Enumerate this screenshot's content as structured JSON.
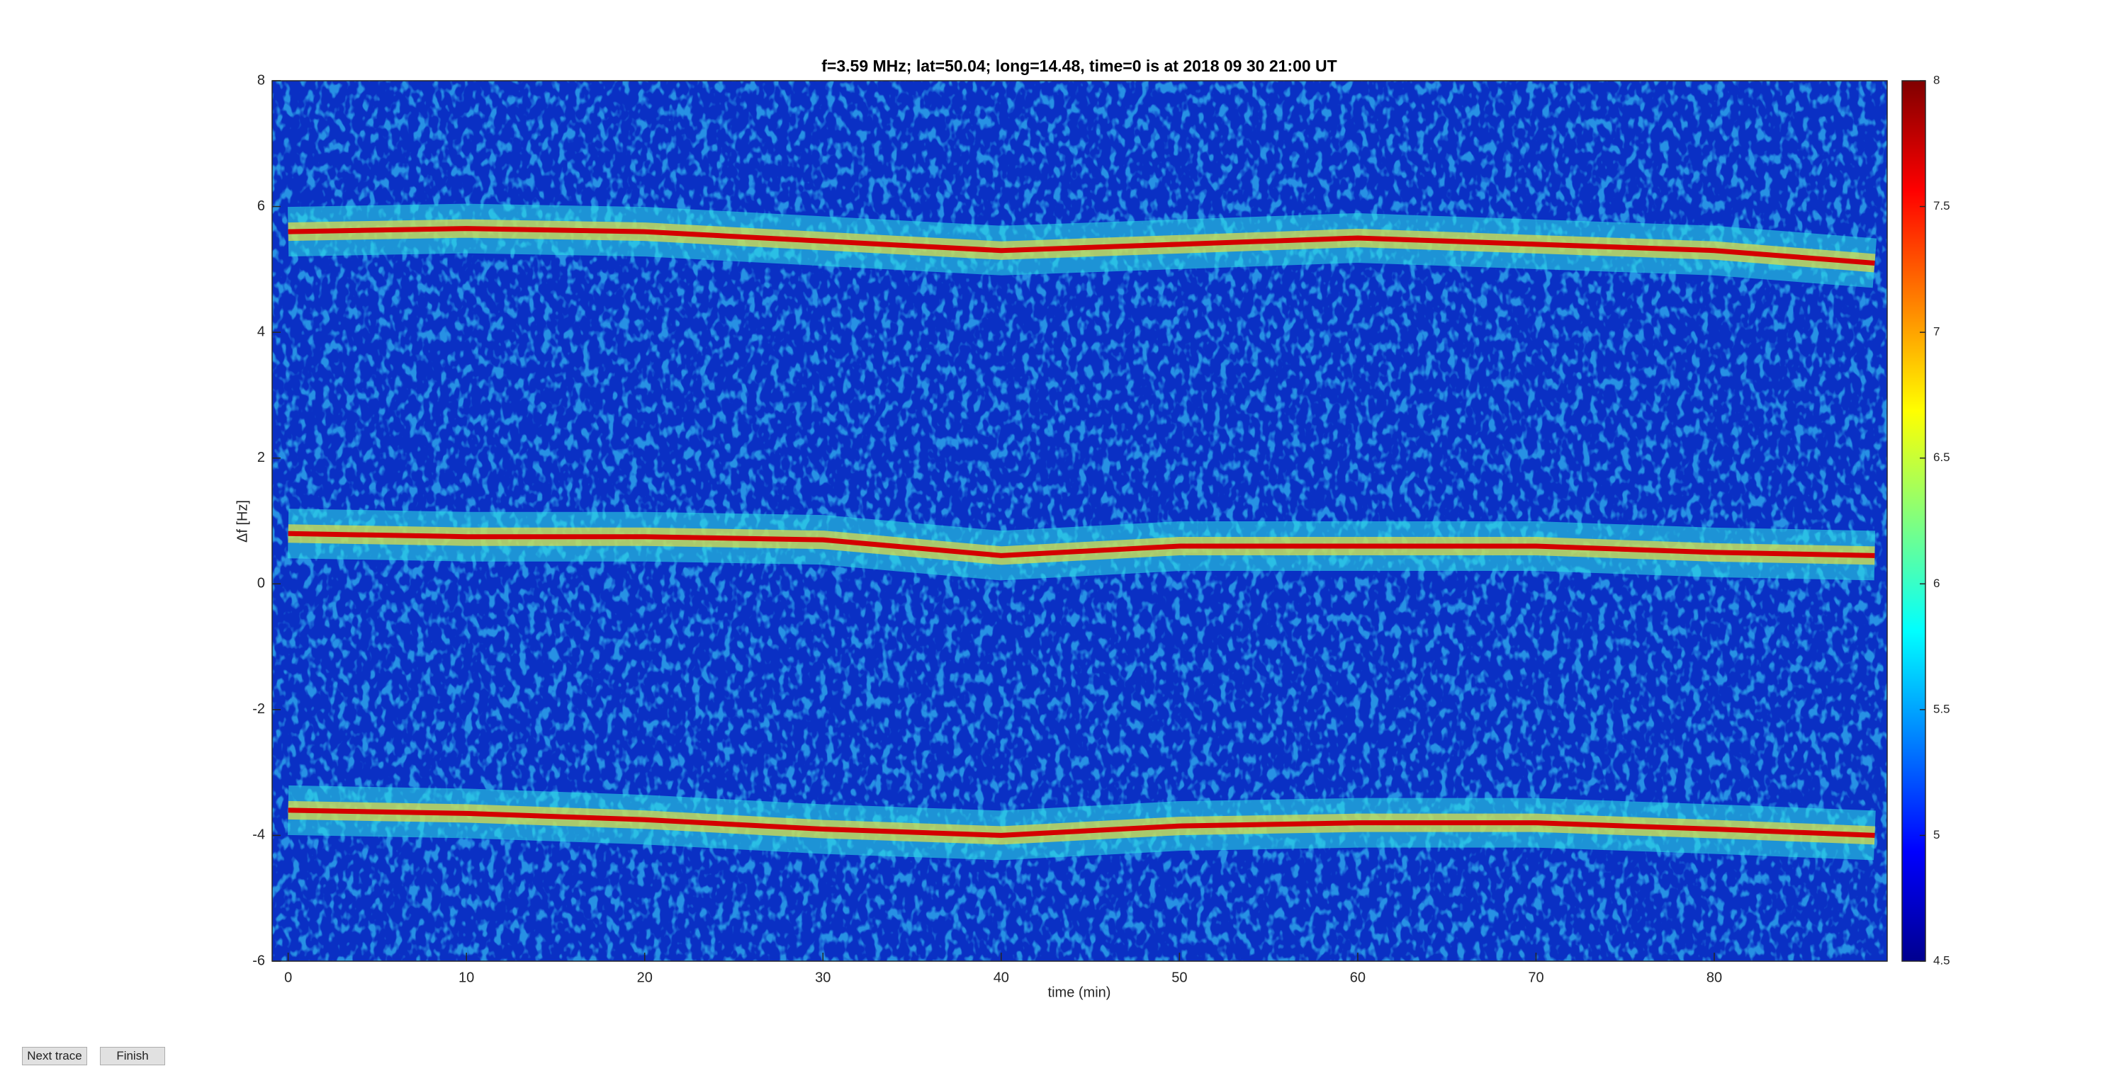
{
  "chart_data": {
    "type": "spectrogram",
    "title": "f=3.59 MHz;  lat=50.04; long=14.48, time=0 is at 2018 09 30 21:00 UT",
    "xlabel": "time (min)",
    "ylabel": "Δf [Hz]",
    "x": [
      0,
      10,
      20,
      30,
      40,
      50,
      60,
      70,
      80,
      89
    ],
    "series": [
      {
        "color": "#d40000",
        "values": [
          5.6,
          5.65,
          5.6,
          5.45,
          5.3,
          5.4,
          5.5,
          5.4,
          5.3,
          5.1
        ]
      },
      {
        "color": "#d40000",
        "values": [
          0.8,
          0.75,
          0.75,
          0.7,
          0.45,
          0.6,
          0.6,
          0.6,
          0.5,
          0.45
        ]
      },
      {
        "color": "#d40000",
        "values": [
          -3.6,
          -3.65,
          -3.75,
          -3.9,
          -4.0,
          -3.85,
          -3.8,
          -3.8,
          -3.9,
          -4.0
        ]
      }
    ],
    "xlim": [
      -0.9,
      89.7
    ],
    "ylim": [
      -6,
      8
    ],
    "xticks": [
      0,
      10,
      20,
      30,
      40,
      50,
      60,
      70,
      80
    ],
    "yticks": [
      -6,
      -4,
      -2,
      0,
      2,
      4,
      6,
      8
    ],
    "clim": [
      4.5,
      8
    ],
    "cticks": [
      4.5,
      5,
      5.5,
      6,
      6.5,
      7,
      7.5,
      8
    ]
  },
  "buttons": [
    "Next trace",
    "Finish"
  ]
}
